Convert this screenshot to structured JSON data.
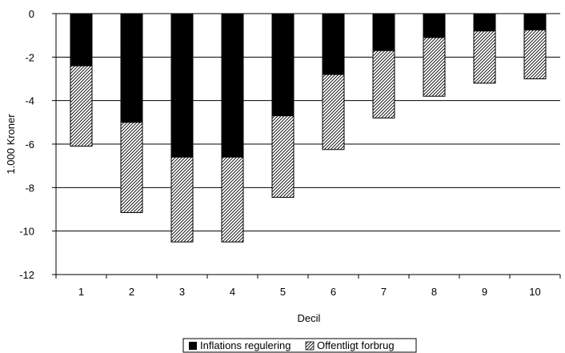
{
  "chart_data": {
    "type": "bar",
    "stacked": true,
    "title": "",
    "xlabel": "Decil",
    "ylabel": "1.000 Kroner",
    "categories": [
      "1",
      "2",
      "3",
      "4",
      "5",
      "6",
      "7",
      "8",
      "9",
      "10"
    ],
    "ylim": [
      -12,
      0
    ],
    "yticks": [
      0,
      -2,
      -4,
      -6,
      -8,
      -10,
      -12
    ],
    "grid": true,
    "legend_position": "bottom",
    "series": [
      {
        "name": "Inflations regulering",
        "values": [
          -2.4,
          -5.0,
          -6.6,
          -6.6,
          -4.7,
          -2.8,
          -1.7,
          -1.1,
          -0.8,
          -0.75
        ],
        "fill": "solid",
        "color": "#000000"
      },
      {
        "name": "Offentligt forbrug",
        "values": [
          -3.7,
          -4.15,
          -3.9,
          -3.9,
          -3.75,
          -3.45,
          -3.1,
          -2.7,
          -2.4,
          -2.25
        ],
        "fill": "hatched",
        "color": "#000000"
      }
    ]
  }
}
